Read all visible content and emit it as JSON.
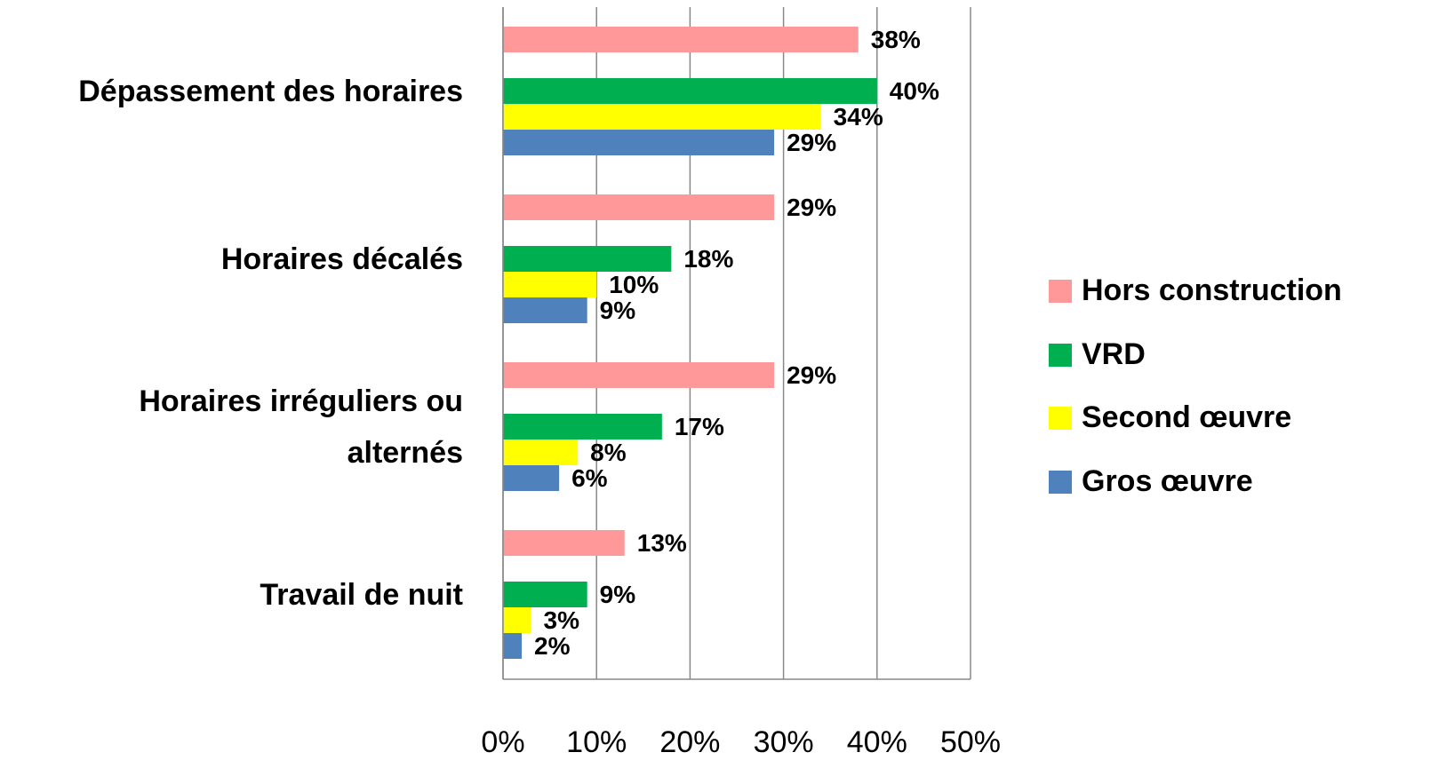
{
  "chart_data": {
    "type": "bar",
    "orientation": "horizontal",
    "categories": [
      "Dépassement des horaires",
      "Horaires décalés",
      "Horaires irréguliers ou alternés",
      "Travail de nuit"
    ],
    "series": [
      {
        "name": "Hors construction",
        "color": "#ff9999",
        "values": [
          38,
          29,
          29,
          13
        ],
        "value_labels": [
          "38%",
          "29%",
          "29%",
          "13%"
        ]
      },
      {
        "name": "VRD",
        "color": "#00b050",
        "values": [
          40,
          18,
          17,
          9
        ],
        "value_labels": [
          "40%",
          "18%",
          "17%",
          "9%"
        ]
      },
      {
        "name": "Second œuvre",
        "color": "#ffff00",
        "values": [
          34,
          10,
          8,
          3
        ],
        "value_labels": [
          "34%",
          "10%",
          "8%",
          "3%"
        ]
      },
      {
        "name": "Gros œuvre",
        "color": "#4f81bd",
        "values": [
          29,
          9,
          6,
          2
        ],
        "value_labels": [
          "29%",
          "9%",
          "6%",
          "2%"
        ]
      }
    ],
    "xlim": [
      0,
      50
    ],
    "xticks": [
      {
        "value": 0,
        "label": "0%"
      },
      {
        "value": 10,
        "label": "10%"
      },
      {
        "value": 20,
        "label": "20%"
      },
      {
        "value": 30,
        "label": "30%"
      },
      {
        "value": 40,
        "label": "40%"
      },
      {
        "value": 50,
        "label": "50%"
      }
    ],
    "grid": true,
    "legend": "right"
  }
}
